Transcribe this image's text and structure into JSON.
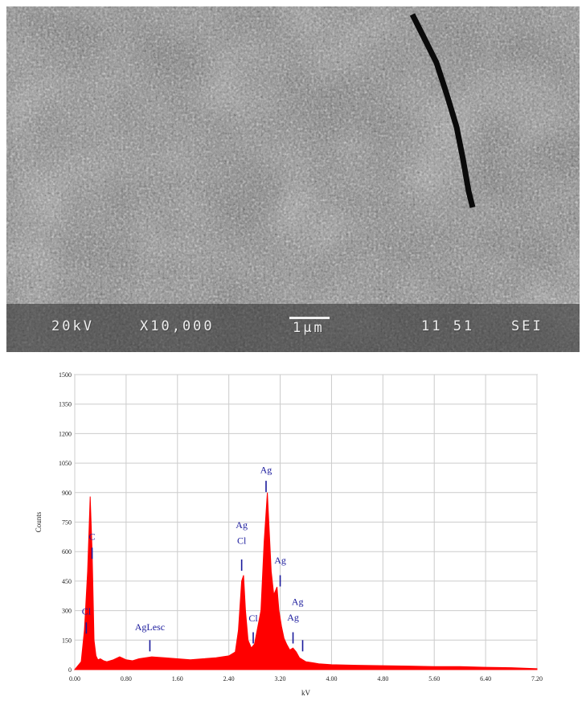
{
  "sem_image": {
    "caption": {
      "voltage": "20kV",
      "magnification": "X10,000",
      "scale": "1μm",
      "id": "11 51",
      "mode": "SEI"
    }
  },
  "chart_data": {
    "type": "area",
    "xlabel": "kV",
    "ylabel": "Counts",
    "xlim": [
      0.0,
      7.2
    ],
    "ylim": [
      0,
      1500
    ],
    "x_ticks": [
      "0.00",
      "0.80",
      "1.60",
      "2.40",
      "3.20",
      "4.00",
      "4.80",
      "5.60",
      "6.40",
      "7.20"
    ],
    "y_ticks": [
      "0",
      "150",
      "300",
      "450",
      "600",
      "750",
      "900",
      "1050",
      "1200",
      "1350",
      "1500"
    ],
    "grid": true,
    "color": "#ff0000",
    "spectrum": {
      "x": [
        0.0,
        0.1,
        0.15,
        0.2,
        0.24,
        0.27,
        0.3,
        0.33,
        0.36,
        0.4,
        0.45,
        0.5,
        0.6,
        0.7,
        0.8,
        0.9,
        1.0,
        1.2,
        1.4,
        1.6,
        1.8,
        2.0,
        2.2,
        2.4,
        2.5,
        2.55,
        2.6,
        2.63,
        2.66,
        2.7,
        2.75,
        2.8,
        2.9,
        2.95,
        3.0,
        3.03,
        3.06,
        3.1,
        3.15,
        3.18,
        3.22,
        3.26,
        3.3,
        3.35,
        3.4,
        3.45,
        3.5,
        3.6,
        3.7,
        3.8,
        4.0,
        4.4,
        4.8,
        5.2,
        5.6,
        6.0,
        6.4,
        6.8,
        7.2
      ],
      "y": [
        0,
        40,
        200,
        500,
        880,
        600,
        150,
        70,
        50,
        55,
        45,
        40,
        50,
        65,
        50,
        45,
        55,
        65,
        60,
        55,
        50,
        55,
        60,
        70,
        90,
        200,
        450,
        480,
        300,
        150,
        110,
        130,
        300,
        650,
        900,
        700,
        500,
        380,
        420,
        300,
        220,
        160,
        130,
        100,
        110,
        90,
        60,
        40,
        35,
        30,
        25,
        22,
        20,
        18,
        15,
        15,
        12,
        10,
        5
      ]
    },
    "annotations": [
      {
        "label": "C",
        "x": 0.27,
        "y": 660,
        "marker_y": 620
      },
      {
        "label": "Cl",
        "x": 0.18,
        "y": 280,
        "marker_y": 240
      },
      {
        "label": "AgLesc",
        "x": 1.17,
        "y": 200,
        "marker_y": 150
      },
      {
        "label": "Ag",
        "x": 2.6,
        "y": 720,
        "marker_y": null
      },
      {
        "label": "Cl",
        "x": 2.6,
        "y": 640,
        "marker_y": 560
      },
      {
        "label": "Cl",
        "x": 2.78,
        "y": 245,
        "marker_y": 190
      },
      {
        "label": "Ag",
        "x": 2.98,
        "y": 1000,
        "marker_y": 960
      },
      {
        "label": "Ag",
        "x": 3.2,
        "y": 540,
        "marker_y": 480
      },
      {
        "label": "Ag",
        "x": 3.47,
        "y": 330,
        "marker_y": null
      },
      {
        "label": "Ag",
        "x": 3.4,
        "y": 250,
        "marker_y": 190
      },
      {
        "label": "Ag",
        "x": 3.55,
        "y": null,
        "marker_y": 150
      }
    ]
  }
}
